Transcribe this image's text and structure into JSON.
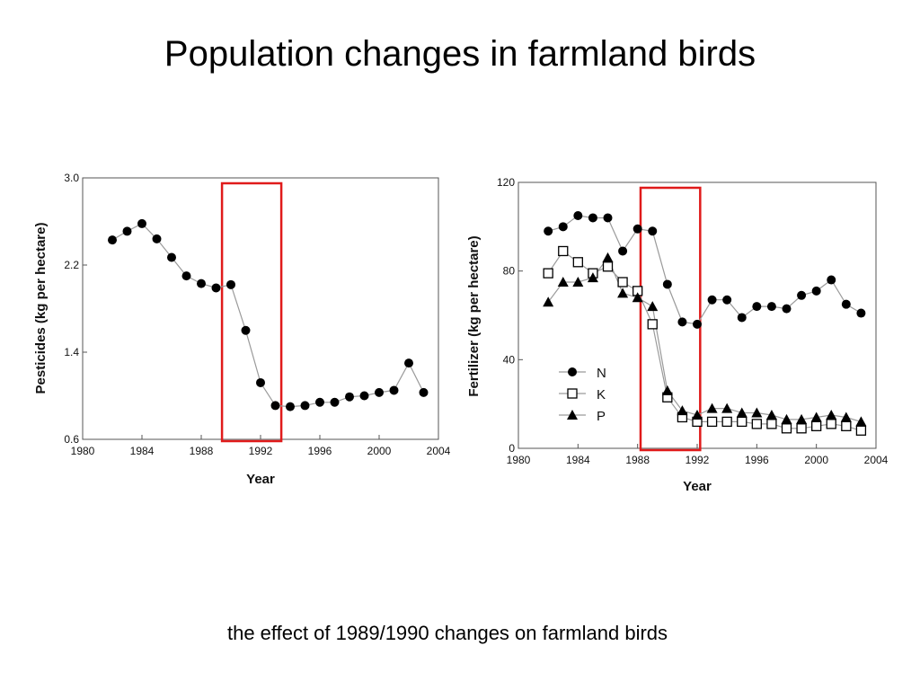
{
  "slide": {
    "title": "Population changes in farmland birds",
    "caption": "the effect of 1989/1990 changes on farmland birds"
  },
  "colors": {
    "highlight": "#e01b1b",
    "series_line": "#9a9a9a",
    "marker": "#000000",
    "axes": "#555555"
  },
  "chart_data": [
    {
      "type": "line",
      "title": "",
      "xlabel": "Year",
      "ylabel": "Pesticides (kg per hectare)",
      "xlim": [
        1980,
        2004
      ],
      "ylim": [
        0.6,
        3.0
      ],
      "xticks": [
        1980,
        1984,
        1988,
        1992,
        1996,
        2000,
        2004
      ],
      "yticks": [
        0.6,
        1.4,
        2.2,
        3.0
      ],
      "ytick_labels": [
        "0.6",
        "1.4",
        "2.2",
        "3.0"
      ],
      "grid": false,
      "highlight_range": [
        1989.4,
        1993.4
      ],
      "series": [
        {
          "marker": "filled-circle",
          "x": [
            1982,
            1983,
            1984,
            1985,
            1986,
            1987,
            1988,
            1989,
            1990,
            1991,
            1992,
            1993,
            1994,
            1995,
            1996,
            1997,
            1998,
            1999,
            2000,
            2001,
            2002,
            2003
          ],
          "values": [
            2.43,
            2.51,
            2.58,
            2.44,
            2.27,
            2.1,
            2.03,
            1.99,
            2.02,
            1.6,
            1.12,
            0.91,
            0.9,
            0.91,
            0.94,
            0.94,
            0.99,
            1.0,
            1.03,
            1.05,
            1.3,
            1.03
          ]
        }
      ]
    },
    {
      "type": "line",
      "title": "",
      "xlabel": "Year",
      "ylabel": "Fertilizer (kg per hectare)",
      "xlim": [
        1980,
        2004
      ],
      "ylim": [
        0,
        120
      ],
      "xticks": [
        1980,
        1984,
        1988,
        1992,
        1996,
        2000,
        2004
      ],
      "yticks": [
        0,
        40,
        80,
        120
      ],
      "ytick_labels": [
        "0",
        "40",
        "80",
        "120"
      ],
      "grid": false,
      "highlight_range": [
        1988.2,
        1992.2
      ],
      "legend_position": "lower-left",
      "series": [
        {
          "name": "N",
          "marker": "filled-circle",
          "x": [
            1982,
            1983,
            1984,
            1985,
            1986,
            1987,
            1988,
            1989,
            1990,
            1991,
            1992,
            1993,
            1994,
            1995,
            1996,
            1997,
            1998,
            1999,
            2000,
            2001,
            2002,
            2003
          ],
          "values": [
            98,
            100,
            105,
            104,
            104,
            89,
            99,
            98,
            74,
            57,
            56,
            67,
            67,
            59,
            64,
            64,
            63,
            69,
            71,
            76,
            65,
            61
          ]
        },
        {
          "name": "K",
          "marker": "open-square",
          "x": [
            1982,
            1983,
            1984,
            1985,
            1986,
            1987,
            1988,
            1989,
            1990,
            1991,
            1992,
            1993,
            1994,
            1995,
            1996,
            1997,
            1998,
            1999,
            2000,
            2001,
            2002,
            2003
          ],
          "values": [
            79,
            89,
            84,
            79,
            82,
            75,
            71,
            56,
            23,
            14,
            12,
            12,
            12,
            12,
            11,
            11,
            9,
            9,
            10,
            11,
            10,
            8
          ]
        },
        {
          "name": "P",
          "marker": "filled-triangle",
          "x": [
            1982,
            1983,
            1984,
            1985,
            1986,
            1987,
            1988,
            1989,
            1990,
            1991,
            1992,
            1993,
            1994,
            1995,
            1996,
            1997,
            1998,
            1999,
            2000,
            2001,
            2002,
            2003
          ],
          "values": [
            66,
            75,
            75,
            77,
            86,
            70,
            68,
            64,
            26,
            17,
            15,
            18,
            18,
            16,
            16,
            15,
            13,
            13,
            14,
            15,
            14,
            12
          ]
        }
      ]
    }
  ]
}
